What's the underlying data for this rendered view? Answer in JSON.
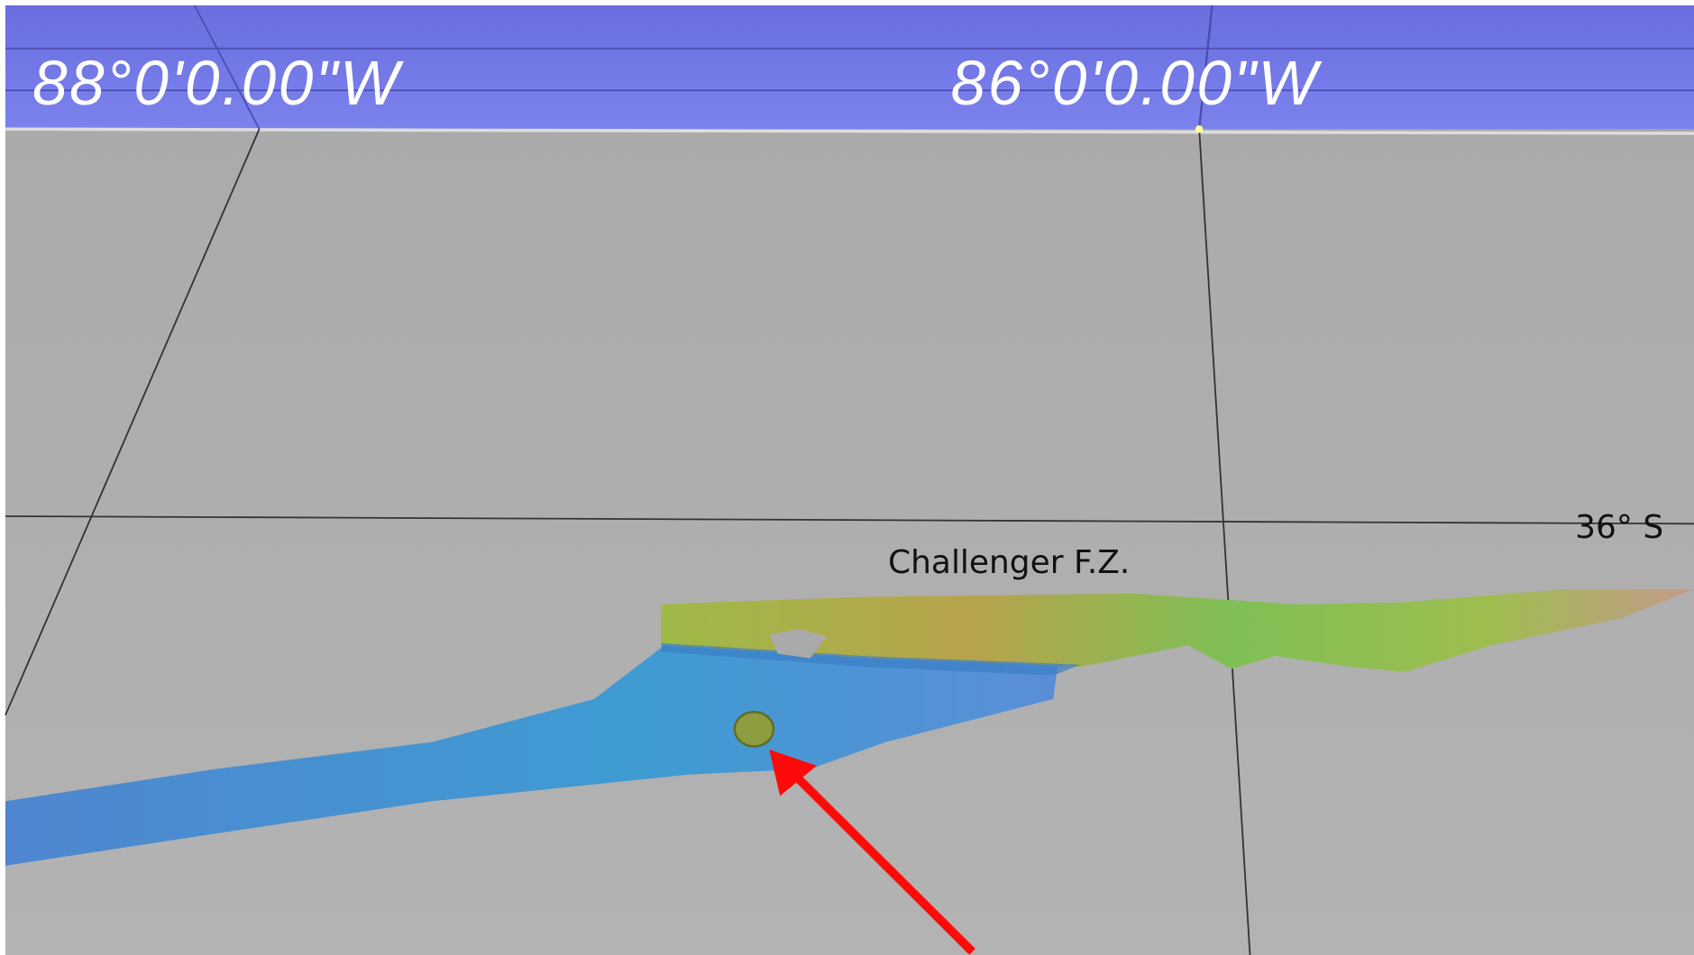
{
  "labels": {
    "longitude_left": "88°0'0.00\"W",
    "longitude_right": "86°0'0.00\"W",
    "latitude": "36° S",
    "feature": "Challenger F.Z."
  }
}
